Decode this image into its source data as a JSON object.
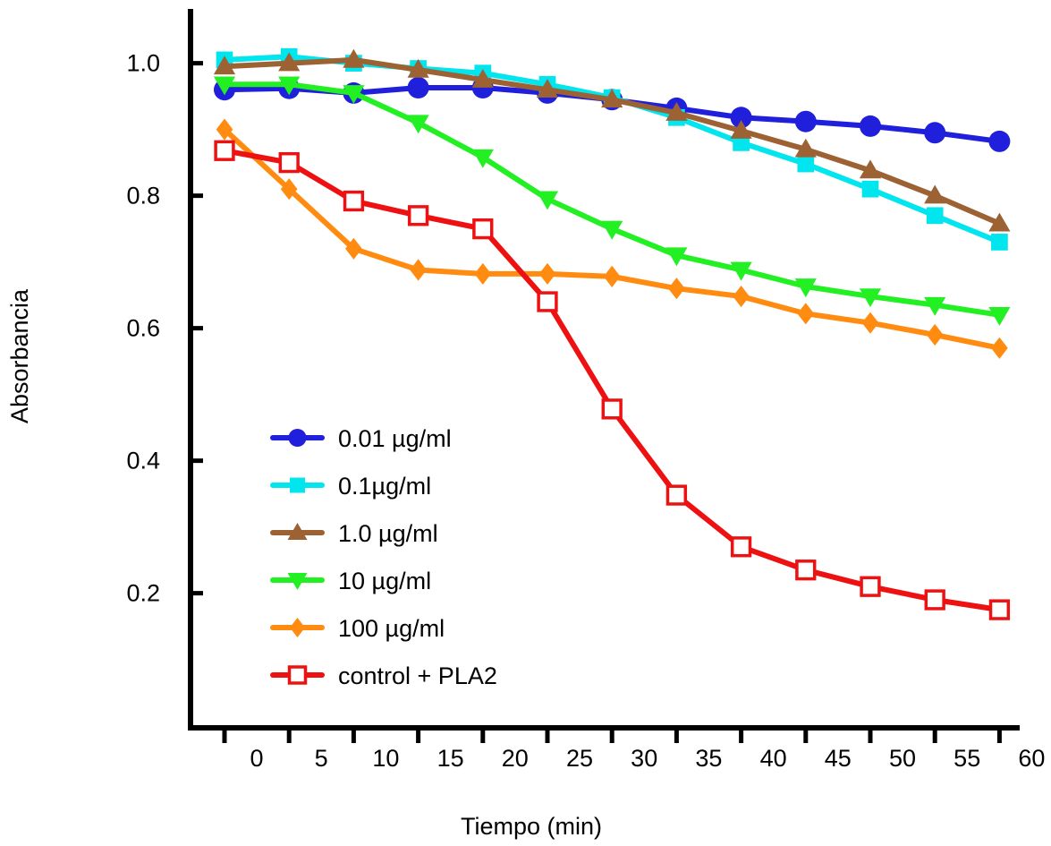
{
  "chart_data": {
    "type": "line",
    "title": "",
    "xlabel": "Tiempo (min)",
    "ylabel": "Absorbancia",
    "x_tick_labels": [
      "0",
      "5",
      "10",
      "15",
      "20",
      "25",
      "30",
      "35",
      "40",
      "45",
      "50",
      "55",
      "60"
    ],
    "y_ticks": [
      0.2,
      0.4,
      0.6,
      0.8,
      1.0
    ],
    "y_tick_labels": [
      "0.2",
      "0.4",
      "0.6",
      "0.8",
      "1.0"
    ],
    "ylim": [
      0.0,
      1.08
    ],
    "legend_position": "bottom-left inside plot",
    "x": [
      0,
      5,
      10,
      15,
      20,
      25,
      30,
      35,
      40,
      45,
      50,
      55,
      60
    ],
    "series": [
      {
        "name": "0.01 µg/ml",
        "color": "#1f1fdc",
        "marker": "circle",
        "values": [
          0.96,
          0.962,
          0.955,
          0.963,
          0.963,
          0.955,
          0.945,
          0.932,
          0.918,
          0.912,
          0.905,
          0.895,
          0.882
        ]
      },
      {
        "name": "0.1µg/ml",
        "color": "#00e5ee",
        "marker": "square",
        "values": [
          1.005,
          1.01,
          1.0,
          0.992,
          0.985,
          0.968,
          0.948,
          0.918,
          0.88,
          0.848,
          0.81,
          0.77,
          0.73
        ]
      },
      {
        "name": "1.0 µg/ml",
        "color": "#9c6233",
        "marker": "triangle-up",
        "values": [
          0.995,
          1.0,
          1.005,
          0.99,
          0.975,
          0.96,
          0.945,
          0.925,
          0.898,
          0.87,
          0.838,
          0.8,
          0.758
        ]
      },
      {
        "name": "10 µg/ml",
        "color": "#22f022",
        "marker": "triangle-down",
        "values": [
          0.968,
          0.968,
          0.955,
          0.91,
          0.858,
          0.795,
          0.75,
          0.71,
          0.688,
          0.663,
          0.648,
          0.635,
          0.62
        ]
      },
      {
        "name": "100 µg/ml",
        "color": "#ff8c11",
        "marker": "diamond",
        "values": [
          0.9,
          0.81,
          0.72,
          0.688,
          0.682,
          0.682,
          0.678,
          0.66,
          0.648,
          0.622,
          0.608,
          0.59,
          0.57
        ]
      },
      {
        "name": "control + PLA2",
        "color": "#ee1111",
        "marker": "open-square",
        "values": [
          0.868,
          0.85,
          0.792,
          0.77,
          0.75,
          0.64,
          0.478,
          0.348,
          0.27,
          0.235,
          0.21,
          0.19,
          0.175
        ]
      }
    ]
  }
}
